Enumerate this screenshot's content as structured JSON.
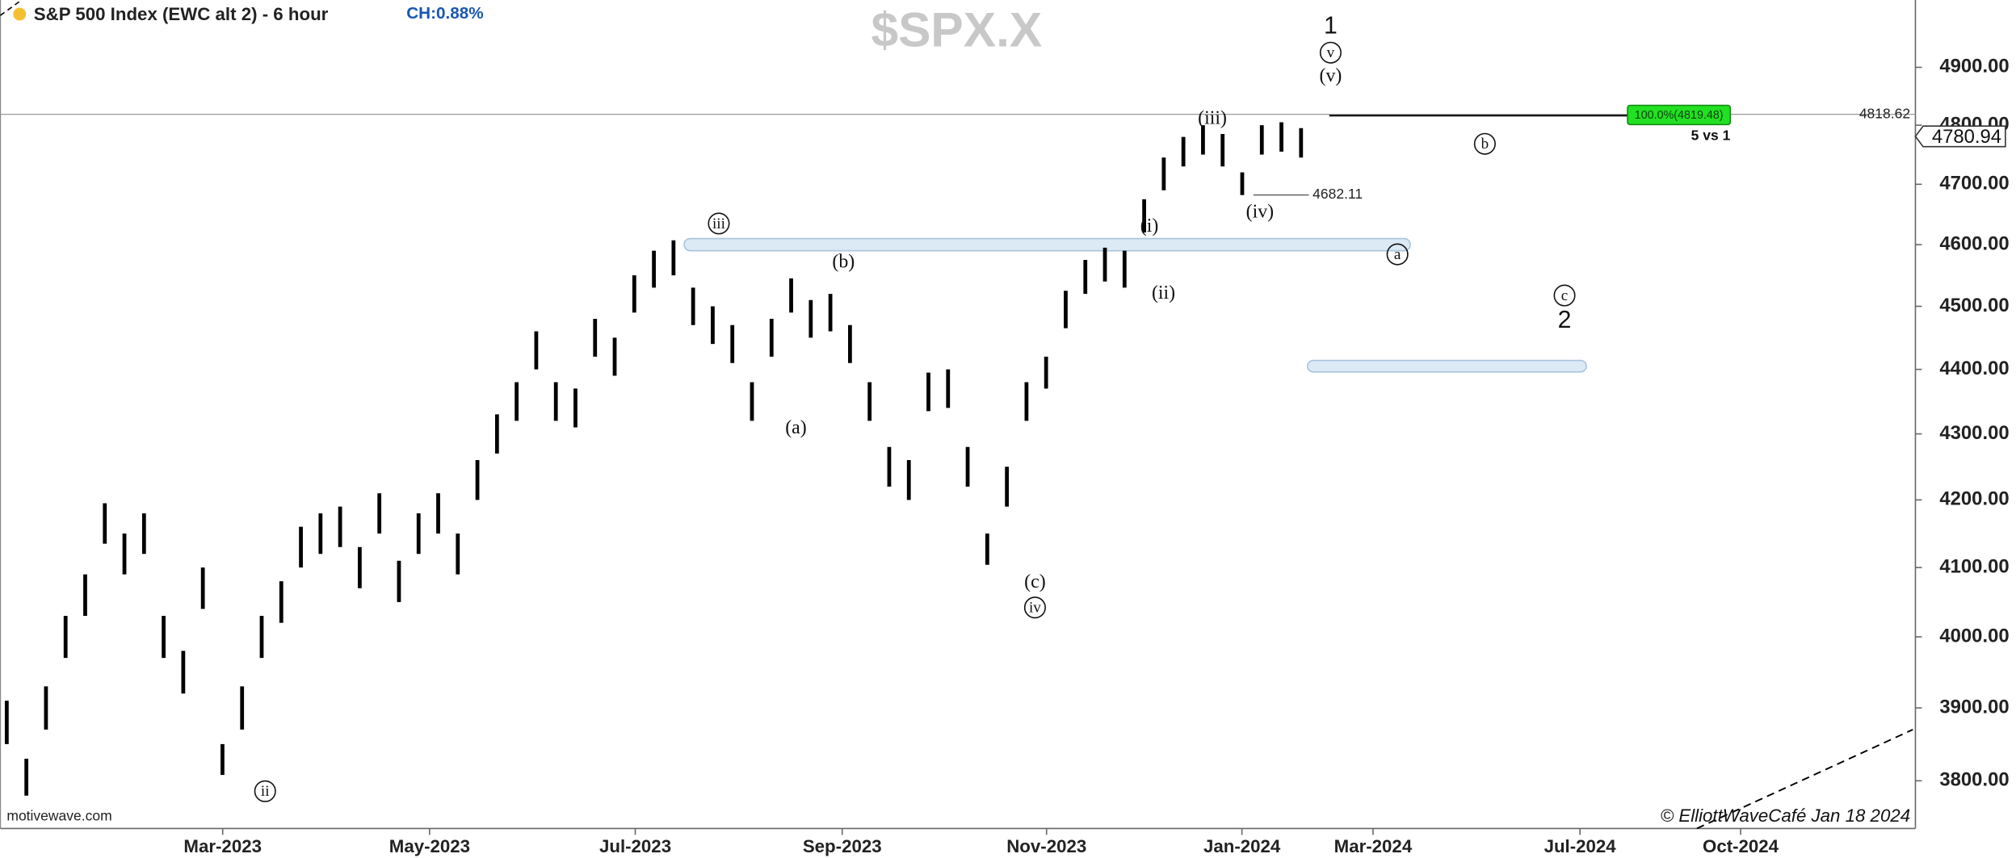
{
  "chart_data": {
    "type": "range-bars",
    "title": "S&P 500 Index (EWC alt 2) - 6 hour",
    "change": "CH:0.88%",
    "watermark": "$SPX.X",
    "source": "motivewave.com",
    "credit": "© ElliottWaveCafé Jan 18 2024",
    "log_scale": true,
    "color": "#000000",
    "ylim": [
      3736,
      5019
    ],
    "yticks": [
      {
        "value": 3800,
        "label": "3800.00"
      },
      {
        "value": 3900,
        "label": "3900.00"
      },
      {
        "value": 4000,
        "label": "4000.00"
      },
      {
        "value": 4100,
        "label": "4100.00"
      },
      {
        "value": 4200,
        "label": "4200.00"
      },
      {
        "value": 4300,
        "label": "4300.00"
      },
      {
        "value": 4400,
        "label": "4400.00"
      },
      {
        "value": 4500,
        "label": "4500.00"
      },
      {
        "value": 4600,
        "label": "4600.00"
      },
      {
        "value": 4700,
        "label": "4700.00"
      },
      {
        "value": 4800,
        "label": "4800.00"
      },
      {
        "value": 4900,
        "label": "4900.00"
      }
    ],
    "xtick_labels": [
      "Mar-2023",
      "May-2023",
      "Jul-2023",
      "Sep-2023",
      "Nov-2023",
      "Jan-2024",
      "Mar-2024",
      "Jul-2024",
      "Oct-2024"
    ],
    "high": [
      3910,
      3830,
      3930,
      4030,
      4090,
      4195,
      4150,
      4180,
      4030,
      3980,
      4100,
      3850,
      3930,
      4030,
      4080,
      4160,
      4180,
      4190,
      4130,
      4210,
      4110,
      4180,
      4210,
      4150,
      4260,
      4330,
      4380,
      4460,
      4380,
      4370,
      4480,
      4450,
      4550,
      4590,
      4607,
      4530,
      4500,
      4470,
      4380,
      4480,
      4545,
      4510,
      4520,
      4470,
      4380,
      4280,
      4260,
      4395,
      4400,
      4280,
      4150,
      4250,
      4380,
      4420,
      4525,
      4575,
      4595,
      4590,
      4675,
      4745,
      4780,
      4800,
      4785,
      4720,
      4800,
      4805,
      4795
    ],
    "low": [
      3850,
      3780,
      3870,
      3970,
      4030,
      4135,
      4090,
      4120,
      3970,
      3920,
      4040,
      3808,
      3870,
      3970,
      4020,
      4100,
      4120,
      4130,
      4070,
      4150,
      4050,
      4120,
      4150,
      4090,
      4200,
      4270,
      4320,
      4400,
      4320,
      4310,
      4420,
      4390,
      4490,
      4530,
      4550,
      4470,
      4440,
      4410,
      4320,
      4420,
      4490,
      4450,
      4460,
      4410,
      4320,
      4220,
      4200,
      4335,
      4340,
      4220,
      4104,
      4190,
      4320,
      4370,
      4465,
      4520,
      4540,
      4530,
      4620,
      4690,
      4730,
      4750,
      4730,
      4682,
      4750,
      4755,
      4745
    ],
    "annotations": [
      {
        "text": "1",
        "circled": false
      },
      {
        "text": "v",
        "circled": true
      },
      {
        "text": "(v)",
        "circled": false
      },
      {
        "text": "(iii)",
        "circled": false
      },
      {
        "text": "(iv)",
        "circled": false
      },
      {
        "text": "iii",
        "circled": true
      },
      {
        "text": "(b)",
        "circled": false
      },
      {
        "text": "(a)",
        "circled": false
      },
      {
        "text": "(c)",
        "circled": false
      },
      {
        "text": "iv",
        "circled": true
      },
      {
        "text": "ii",
        "circled": true
      },
      {
        "text": "(i)",
        "circled": false
      },
      {
        "text": "(ii)",
        "circled": false
      },
      {
        "text": "b",
        "circled": true
      },
      {
        "text": "a",
        "circled": true
      },
      {
        "text": "c",
        "circled": true
      },
      {
        "text": "2",
        "circled": false
      }
    ],
    "level_high": 4818.62,
    "level_low": 4682.11,
    "last_price": 4780.94,
    "target_label": "100.0%(4819.48)",
    "target_note": "5 vs 1",
    "zones": [
      [
        4590,
        4610
      ],
      [
        4396,
        4414
      ]
    ]
  }
}
